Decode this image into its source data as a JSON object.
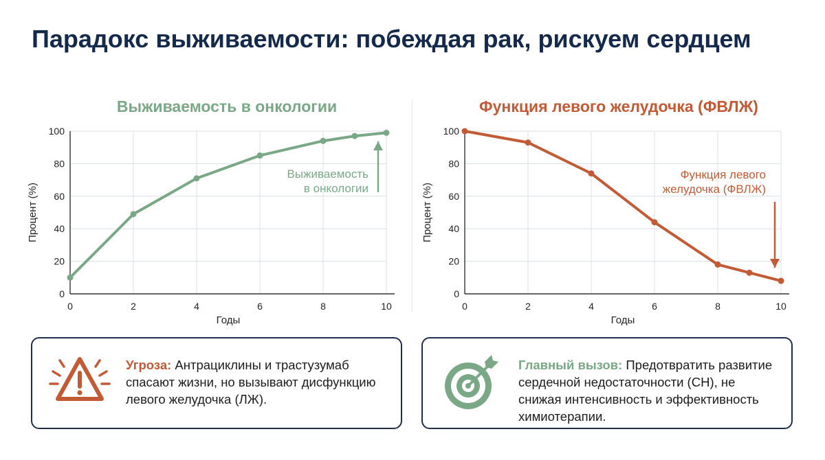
{
  "title": "Парадокс выживаемости: побеждая рак, рискуем сердцем",
  "colors": {
    "navy": "#15294a",
    "green": "#7aa886",
    "orange": "#c25a35",
    "grid": "#dcdfe3",
    "axis": "#333333"
  },
  "chart_data": [
    {
      "type": "line",
      "title": "Выживаемость в онкологии",
      "xlabel": "Годы",
      "ylabel": "Процент (%)",
      "x": [
        0,
        2,
        4,
        6,
        8,
        9,
        10
      ],
      "series": [
        {
          "name": "",
          "values": [
            10,
            49,
            71,
            85,
            94,
            97,
            99
          ]
        }
      ],
      "xlim": [
        0,
        10
      ],
      "ylim": [
        0,
        100
      ],
      "xticks": [
        "0",
        "2",
        "4",
        "6",
        "8",
        "10"
      ],
      "yticks": [
        "0",
        "20",
        "40",
        "60",
        "80",
        "100"
      ],
      "grid": true,
      "annotation": {
        "lines": [
          "Выживаемость",
          "в онкологии"
        ],
        "arrow": "up"
      }
    },
    {
      "type": "line",
      "title": "Функция левого желудочка (ФВЛЖ)",
      "xlabel": "Годы",
      "ylabel": "Процент (%)",
      "x": [
        0,
        2,
        4,
        6,
        8,
        9,
        10
      ],
      "series": [
        {
          "name": "",
          "values": [
            100,
            93,
            74,
            44,
            18,
            13,
            8
          ]
        }
      ],
      "xlim": [
        0,
        10
      ],
      "ylim": [
        0,
        100
      ],
      "xticks": [
        "0",
        "2",
        "4",
        "6",
        "8",
        "10"
      ],
      "yticks": [
        "0",
        "20",
        "40",
        "60",
        "80",
        "100"
      ],
      "grid": true,
      "annotation": {
        "lines": [
          "Функция левого",
          "желудочка (ФВЛЖ)"
        ],
        "arrow": "down"
      }
    }
  ],
  "cards": {
    "threat": {
      "icon": "warning-triangle-icon",
      "lead": "Угроза:",
      "text": " Антрациклины и трастузумаб спасают жизни, но вызывают дисфункцию левого желудочка (ЛЖ)."
    },
    "challenge": {
      "icon": "target-arrow-icon",
      "lead": "Главный вызов:",
      "text": " Предотвратить развитие сердечной недостаточности (СН), не снижая интенсивность и эффективность химиотерапии."
    }
  }
}
